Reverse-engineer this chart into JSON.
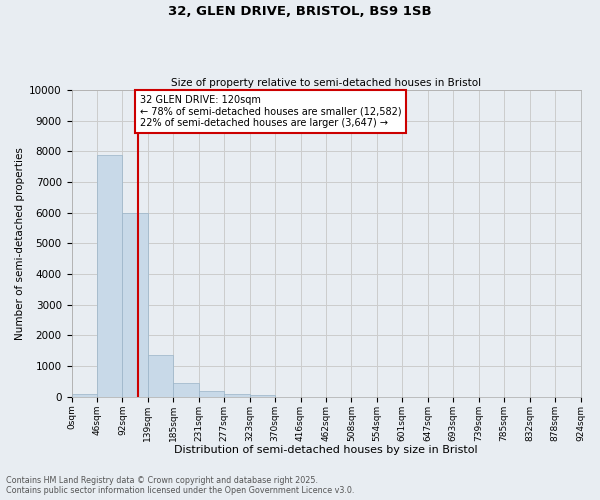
{
  "title": "32, GLEN DRIVE, BRISTOL, BS9 1SB",
  "subtitle": "Size of property relative to semi-detached houses in Bristol",
  "xlabel": "Distribution of semi-detached houses by size in Bristol",
  "ylabel": "Number of semi-detached properties",
  "bar_values": [
    100,
    7900,
    6000,
    1350,
    450,
    200,
    100,
    50,
    10,
    5,
    2,
    1,
    0,
    0,
    0,
    0,
    0,
    0,
    0,
    0
  ],
  "x_labels": [
    "0sqm",
    "46sqm",
    "92sqm",
    "139sqm",
    "185sqm",
    "231sqm",
    "277sqm",
    "323sqm",
    "370sqm",
    "416sqm",
    "462sqm",
    "508sqm",
    "554sqm",
    "601sqm",
    "647sqm",
    "693sqm",
    "739sqm",
    "785sqm",
    "832sqm",
    "878sqm",
    "924sqm"
  ],
  "bar_color": "#c8d9e8",
  "bar_edge_color": "#9ab4c8",
  "grid_color": "#cccccc",
  "background_color": "#e8edf2",
  "ylim": [
    0,
    10000
  ],
  "property_line_x": 120,
  "property_line_color": "#cc0000",
  "annotation_title": "32 GLEN DRIVE: 120sqm",
  "annotation_line1": "← 78% of semi-detached houses are smaller (12,582)",
  "annotation_line2": "22% of semi-detached houses are larger (3,647) →",
  "footer_line1": "Contains HM Land Registry data © Crown copyright and database right 2025.",
  "footer_line2": "Contains public sector information licensed under the Open Government Licence v3.0.",
  "bin_width": 46
}
